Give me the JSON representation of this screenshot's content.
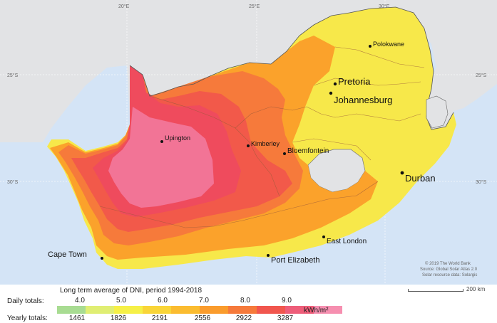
{
  "map": {
    "grid_labels": {
      "lon_20": "20°E",
      "lon_25": "25°E",
      "lon_30": "30°E",
      "lat_25_left": "25°S",
      "lat_25_right": "25°S",
      "lat_30_left": "30°S",
      "lat_30_right": "30°S"
    },
    "cities": [
      {
        "name": "Polokwane",
        "size": "small"
      },
      {
        "name": "Pretoria",
        "size": "large"
      },
      {
        "name": "Johannesburg",
        "size": "large"
      },
      {
        "name": "Upington",
        "size": "small"
      },
      {
        "name": "Kimberley",
        "size": "small"
      },
      {
        "name": "Bloemfontein",
        "size": "small"
      },
      {
        "name": "Durban",
        "size": "large"
      },
      {
        "name": "East London",
        "size": "small"
      },
      {
        "name": "Cape Town",
        "size": "medium"
      },
      {
        "name": "Port Elizabeth",
        "size": "medium"
      }
    ],
    "credit": [
      "© 2019 The World Bank",
      "Source: Global Solar Atlas 2.0",
      "Solar resource data: Solargis"
    ],
    "colors": {
      "ocean": "#d4e4f6",
      "neighbor_land": "#e2e3e5",
      "low": "#f7e84a",
      "mid_low": "#fbc531",
      "mid": "#fba22b",
      "mid_high": "#f7803a",
      "high": "#f2594a",
      "very_high": "#ef4b5d",
      "max": "#f27496"
    }
  },
  "legend": {
    "title": "Long term average of DNI, period 1994-2018",
    "daily_label": "Daily totals:",
    "yearly_label": "Yearly totals:",
    "daily_ticks": [
      "4.0",
      "5.0",
      "6.0",
      "7.0",
      "8.0",
      "9.0"
    ],
    "yearly_ticks": [
      "1461",
      "1826",
      "2191",
      "2556",
      "2922",
      "3287"
    ],
    "units": "kWh/m²",
    "ramp_colors": [
      "#a8dc92",
      "#e0ee73",
      "#f6f047",
      "#f9d538",
      "#fbbc30",
      "#fa9c2d",
      "#f67a3b",
      "#f1564e",
      "#ee5d79",
      "#f68fb0"
    ],
    "scale_label": "200 km"
  }
}
